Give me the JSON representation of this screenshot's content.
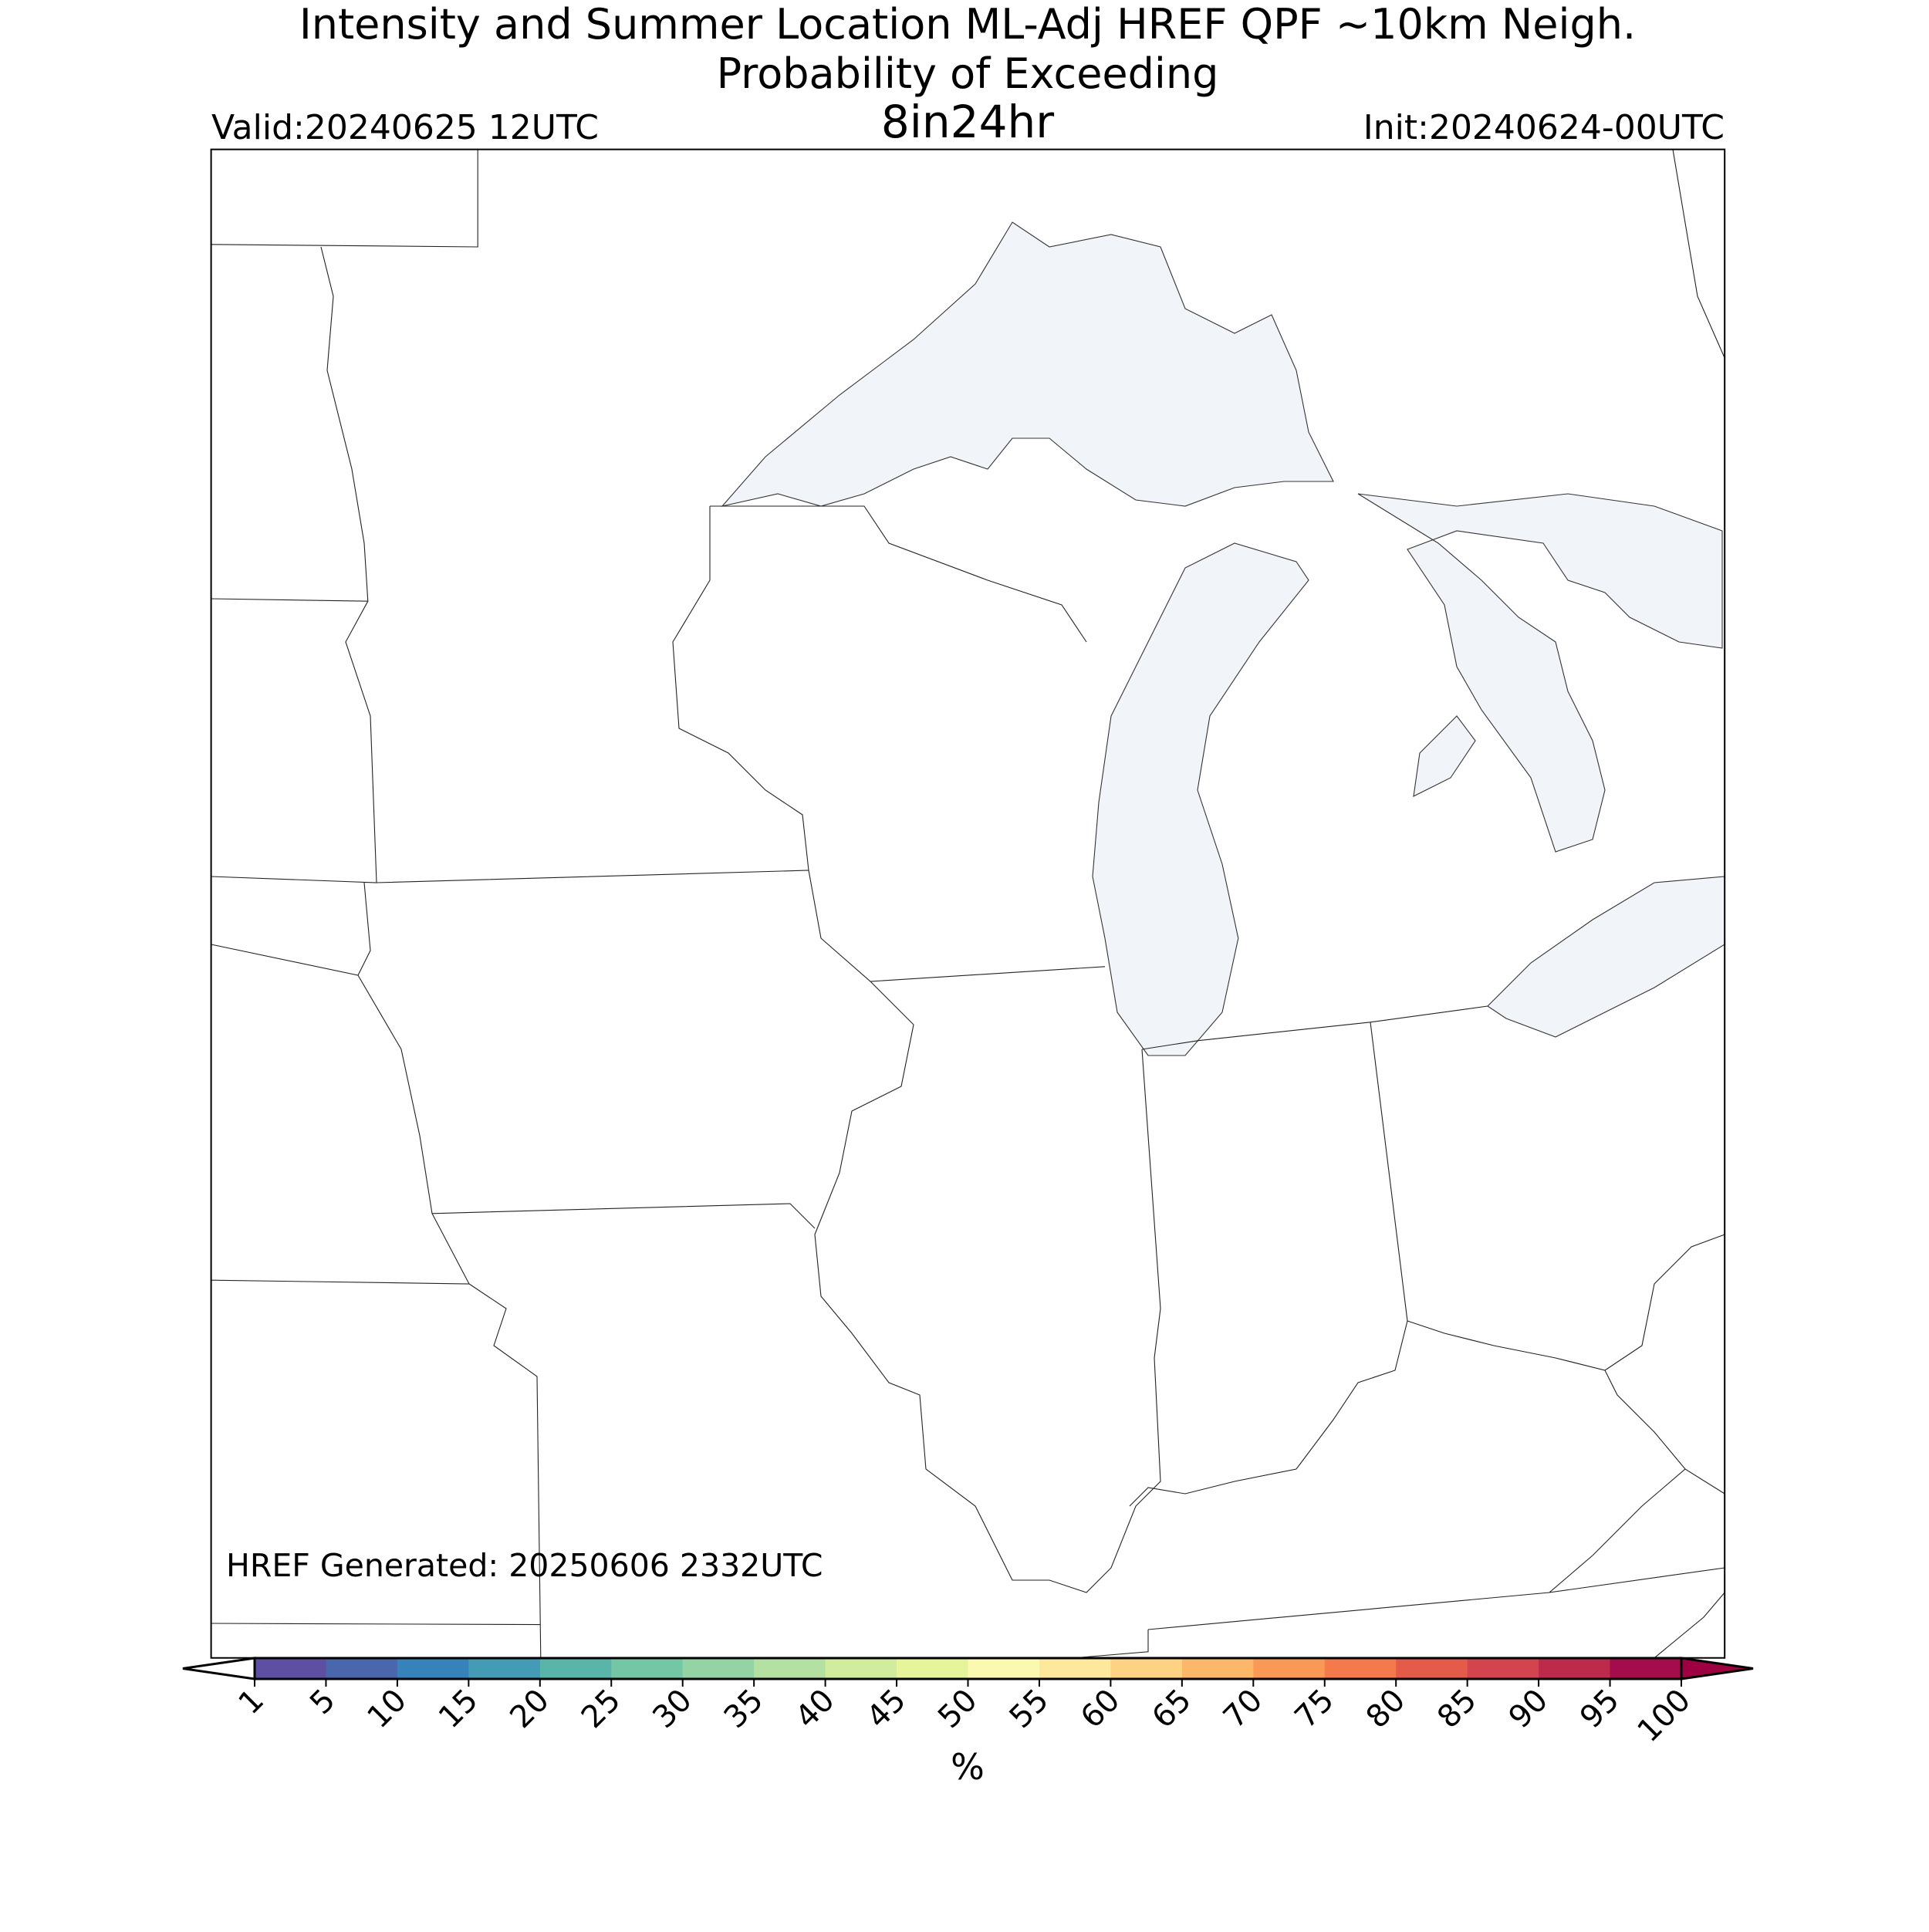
{
  "header": {
    "title_line1": "Intensity and Summer Location ML-Adj HREF QPF ~10km Neigh.",
    "title_line2": "Probability of Exceeding",
    "threshold": "8in24hr",
    "valid": "Valid:20240625 12UTC",
    "init": "Init:20240624-00UTC"
  },
  "footnote": "HREF Generated: 20250606 2332UTC",
  "colorbar": {
    "label": "%",
    "ticks": [
      1,
      5,
      10,
      15,
      20,
      25,
      30,
      35,
      40,
      45,
      50,
      55,
      60,
      65,
      70,
      75,
      80,
      85,
      90,
      95,
      100
    ],
    "colors": [
      "#5e4fa2",
      "#4a67ad",
      "#3682ba",
      "#439bb5",
      "#59b4aa",
      "#74c7a5",
      "#94d4a4",
      "#b4e0a2",
      "#d0ec9c",
      "#e7f59a",
      "#fbf8b0",
      "#fee89c",
      "#fed283",
      "#fdb769",
      "#fa9856",
      "#f47a4b",
      "#e45c49",
      "#d4444f",
      "#bd2a4b",
      "#a50c4b"
    ],
    "under_color": "#ffffff",
    "over_color": "#9e0142"
  }
}
